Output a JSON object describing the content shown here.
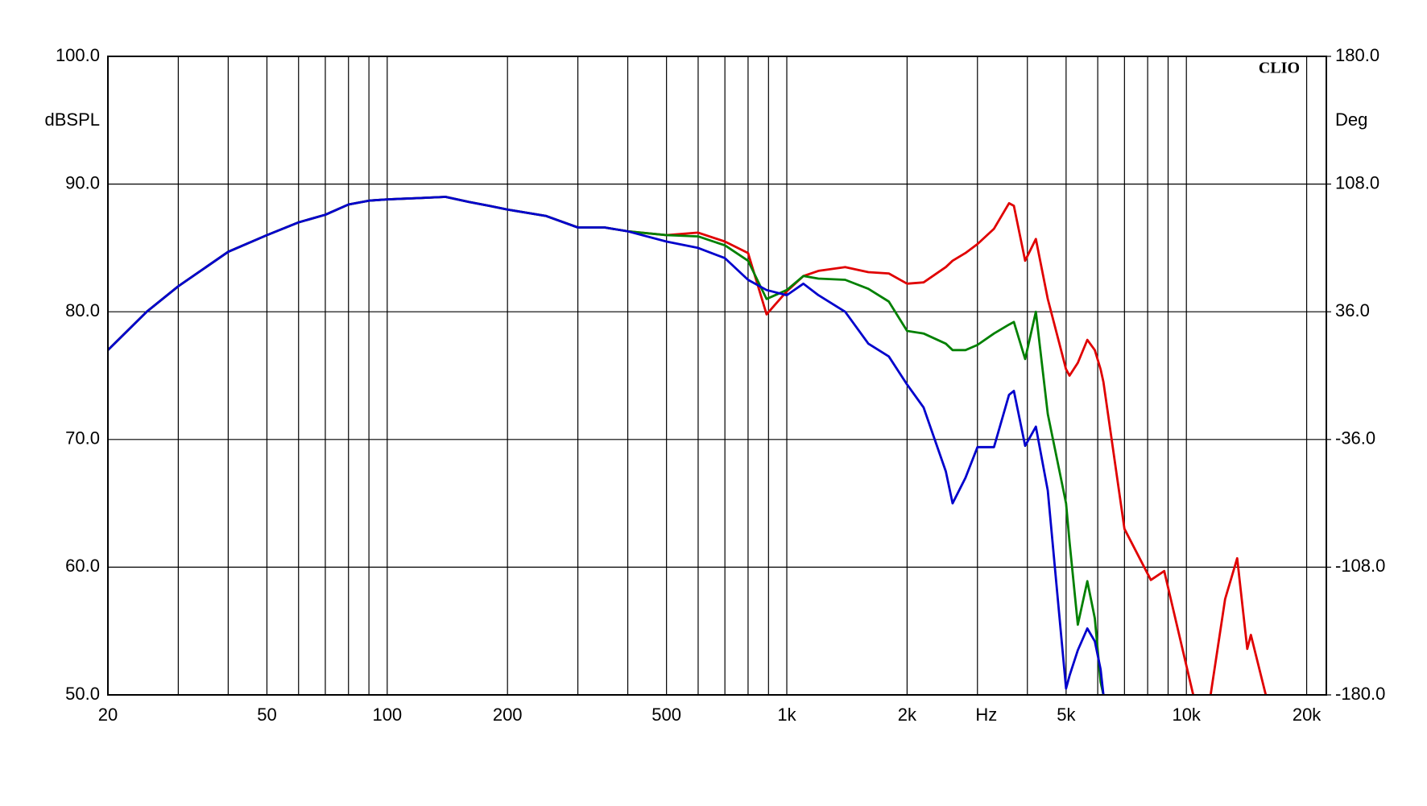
{
  "chart_data": {
    "type": "line",
    "brand": "CLIO",
    "y_label": "dBSPL",
    "y2_label": "Deg",
    "x_label": "Hz",
    "x_label_at": 3000,
    "xscale": "log",
    "grid": true,
    "xlim": [
      20,
      22400
    ],
    "ylim": [
      50,
      100
    ],
    "y2lim": [
      -180,
      180
    ],
    "xticks": [
      20,
      50,
      100,
      200,
      500,
      {
        "value": 1000,
        "label": "1k"
      },
      {
        "value": 2000,
        "label": "2k"
      },
      {
        "value": 5000,
        "label": "5k"
      },
      {
        "value": 10000,
        "label": "10k"
      },
      {
        "value": 20000,
        "label": "20k"
      }
    ],
    "minor_xticks": [
      30,
      40,
      60,
      70,
      80,
      90,
      300,
      400,
      600,
      700,
      800,
      900,
      3000,
      4000,
      6000,
      7000,
      8000,
      9000
    ],
    "yticks": [
      {
        "value": 50,
        "label": "50.0"
      },
      {
        "value": 60,
        "label": "60.0"
      },
      {
        "value": 70,
        "label": "70.0"
      },
      {
        "value": 80,
        "label": "80.0"
      },
      {
        "value": 90,
        "label": "90.0"
      },
      {
        "value": 100,
        "label": "100.0"
      }
    ],
    "y2ticks": [
      {
        "value": -180,
        "label": "-180.0"
      },
      {
        "value": -108,
        "label": "-108.0"
      },
      {
        "value": -36,
        "label": "-36.0"
      },
      {
        "value": 36,
        "label": "36.0"
      },
      {
        "value": 108,
        "label": "108.0"
      },
      {
        "value": 180,
        "label": "180.0"
      }
    ],
    "x": [
      20,
      25,
      30,
      40,
      50,
      60,
      70,
      80,
      90,
      100,
      120,
      140,
      160,
      180,
      200,
      250,
      300,
      350,
      400,
      500,
      600,
      700,
      800,
      890,
      1000,
      1100,
      1200,
      1400,
      1600,
      1800,
      2000,
      2200,
      2500,
      2600,
      2800,
      3000,
      3300,
      3600,
      3700,
      3950,
      4200,
      4500,
      5000,
      5100,
      5350,
      5650,
      5900,
      6100,
      6200,
      7000,
      8150,
      8800,
      10400,
      11000,
      11500,
      12500,
      13400,
      14200,
      14500,
      15800
    ],
    "series": [
      {
        "color": "#e00000",
        "values": [
          77,
          80,
          82,
          84.7,
          86,
          87,
          87.6,
          88.4,
          88.7,
          88.8,
          88.9,
          89,
          88.6,
          88.3,
          88,
          87.5,
          86.6,
          86.6,
          86.3,
          86,
          86.2,
          85.5,
          84.6,
          79.8,
          81.6,
          82.8,
          83.2,
          83.5,
          83.1,
          83,
          82.2,
          82.3,
          83.5,
          84,
          84.6,
          85.3,
          86.5,
          88.5,
          88.3,
          84,
          85.7,
          81,
          75.5,
          75,
          76,
          77.8,
          77,
          75.5,
          74.5,
          63,
          59,
          59.7,
          50,
          null,
          50,
          57.5,
          60.7,
          53.6,
          54.7,
          50
        ]
      },
      {
        "color": "#008000",
        "values": [
          77,
          80,
          82,
          84.7,
          86,
          87,
          87.6,
          88.4,
          88.7,
          88.8,
          88.9,
          89,
          88.6,
          88.3,
          88,
          87.5,
          86.6,
          86.6,
          86.3,
          86,
          85.9,
          85.2,
          84,
          81,
          81.7,
          82.8,
          82.6,
          82.5,
          81.8,
          80.8,
          78.5,
          78.3,
          77.5,
          77,
          77,
          77.4,
          78.3,
          79,
          79.2,
          76.3,
          80,
          72,
          65,
          62,
          55.5,
          58.9,
          56,
          51,
          50,
          null,
          null,
          null,
          null,
          null,
          null,
          null,
          null,
          null,
          null,
          null
        ]
      },
      {
        "color": "#0000cc",
        "values": [
          77,
          80,
          82,
          84.7,
          86,
          87,
          87.6,
          88.4,
          88.7,
          88.8,
          88.9,
          89,
          88.6,
          88.3,
          88,
          87.5,
          86.6,
          86.6,
          86.3,
          85.5,
          85,
          84.2,
          82.5,
          81.7,
          81.3,
          82.2,
          81.3,
          80,
          77.5,
          76.5,
          74.3,
          72.5,
          67.5,
          65,
          67,
          69.4,
          69.4,
          73.5,
          73.8,
          69.5,
          71,
          66,
          50.5,
          51.5,
          53.5,
          55.2,
          54.2,
          52,
          50,
          null,
          null,
          null,
          null,
          null,
          null,
          null,
          null,
          null,
          null,
          null
        ]
      }
    ]
  }
}
